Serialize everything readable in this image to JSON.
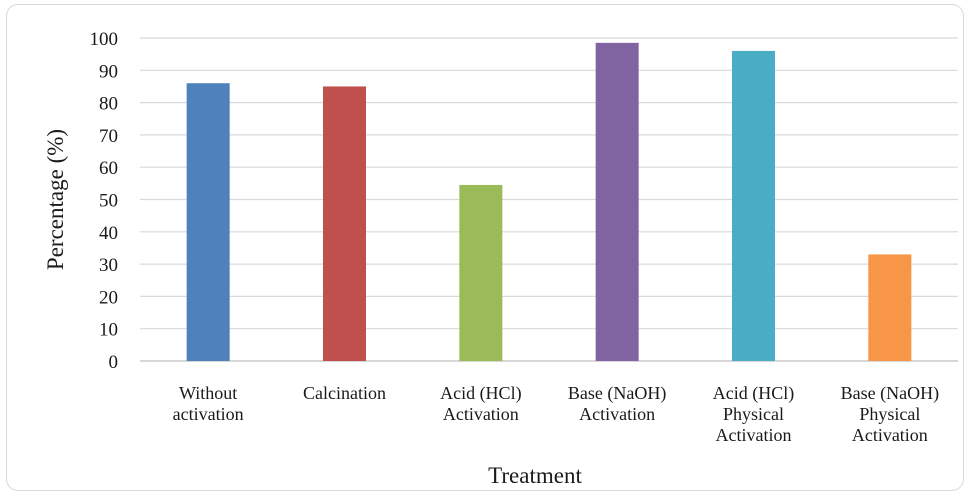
{
  "chart_data": {
    "type": "bar",
    "categories": [
      [
        "Without",
        "activation"
      ],
      [
        "Calcination"
      ],
      [
        "Acid (HCl)",
        "Activation"
      ],
      [
        "Base (NaOH)",
        "Activation"
      ],
      [
        "Acid (HCl)",
        "Physical",
        "Activation"
      ],
      [
        "Base (NaOH)",
        "Physical",
        "Activation"
      ]
    ],
    "values": [
      86,
      85,
      54.5,
      98.5,
      96,
      33
    ],
    "colors": [
      "#4f81bd",
      "#c0504d",
      "#9bbb59",
      "#8064a2",
      "#4bacc6",
      "#f79646"
    ],
    "xlabel": "Treatment",
    "ylabel": "Percentage (%)",
    "ylim": [
      0,
      100
    ],
    "yticks": [
      0,
      10,
      20,
      30,
      40,
      50,
      60,
      70,
      80,
      90,
      100
    ],
    "grid": true,
    "legend": "none"
  }
}
